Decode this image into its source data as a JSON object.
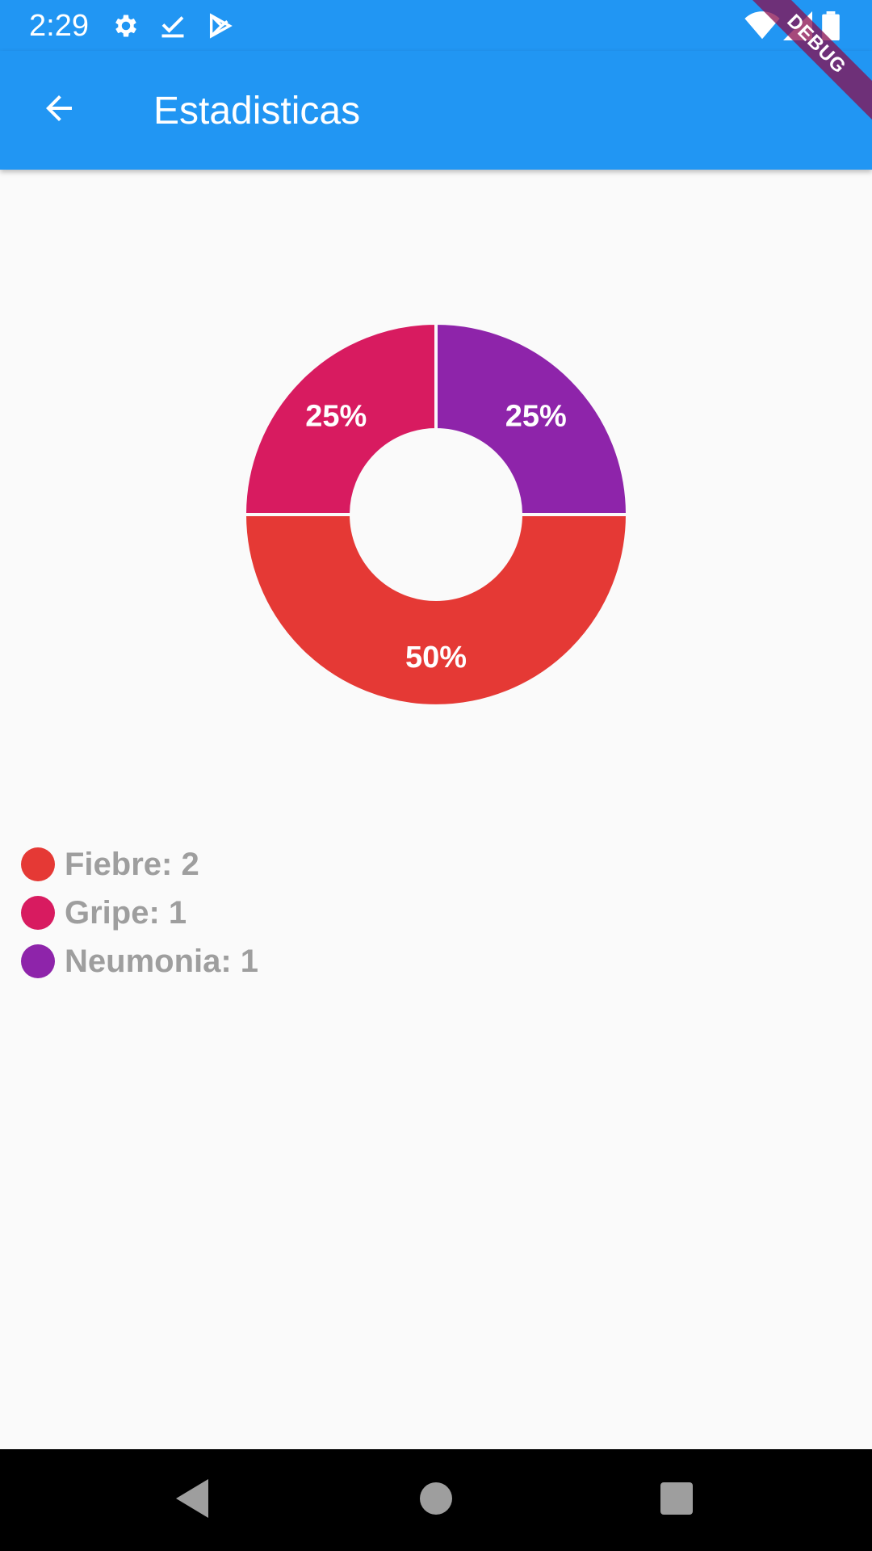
{
  "status_bar": {
    "time": "2:29",
    "icons": [
      "gear-icon",
      "check-download-icon",
      "play-store-icon",
      "wifi-icon",
      "signal-icon",
      "battery-icon"
    ]
  },
  "app_bar": {
    "title": "Estadisticas",
    "back_icon": "arrow-back-icon"
  },
  "debug_banner": "DEBUG",
  "chart_data": {
    "type": "pie",
    "donut": true,
    "categories": [
      "Fiebre",
      "Gripe",
      "Neumonia"
    ],
    "values": [
      2,
      1,
      1
    ],
    "percent_labels": [
      "50%",
      "25%",
      "25%"
    ],
    "colors": [
      "#e53935",
      "#d81b60",
      "#8e24aa"
    ]
  },
  "legend": {
    "items": [
      {
        "label": "Fiebre: 2",
        "color": "#e53935"
      },
      {
        "label": "Gripe: 1",
        "color": "#d81b60"
      },
      {
        "label": "Neumonia: 1",
        "color": "#8e24aa"
      }
    ]
  },
  "nav_bar": {
    "buttons": [
      "back-triangle-icon",
      "home-circle-icon",
      "recents-square-icon"
    ]
  }
}
